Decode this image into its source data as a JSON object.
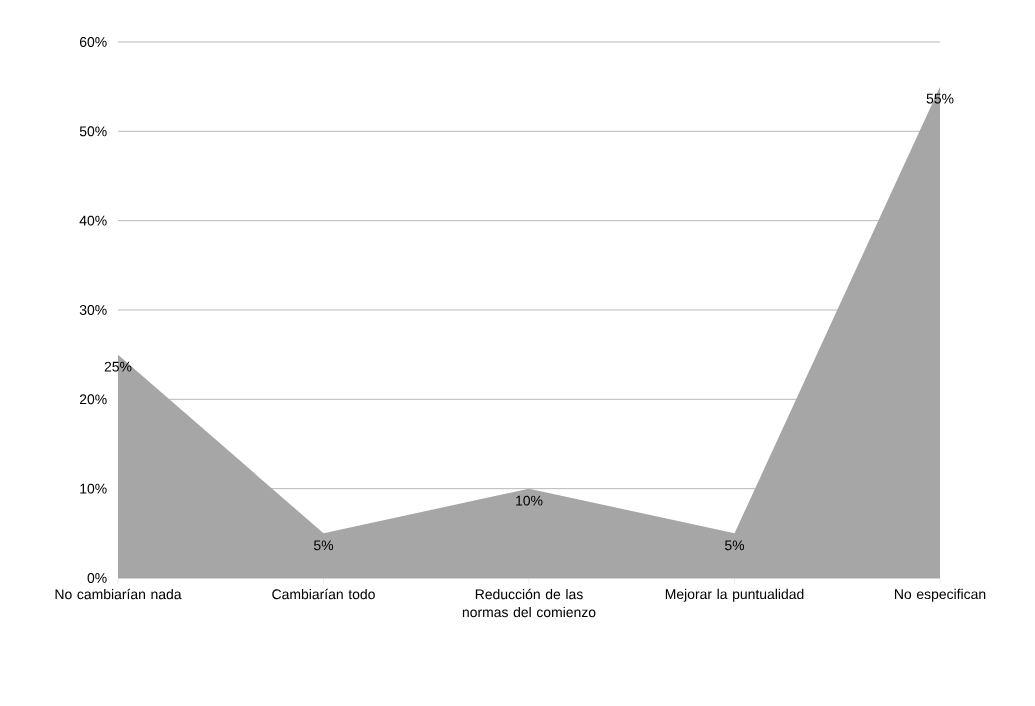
{
  "chart_data": {
    "type": "area",
    "categories": [
      "No cambiarían nada",
      "Cambiarían todo",
      "Reducción de las normas del comienzo",
      "Mejorar la puntualidad",
      "No especifican"
    ],
    "values": [
      25,
      5,
      10,
      5,
      55
    ],
    "value_labels": [
      "25%",
      "5%",
      "10%",
      "5%",
      "55%"
    ],
    "color": "#a6a6a6",
    "ylim": [
      0,
      60
    ],
    "yticks": [
      {
        "value": 0,
        "label": "0%"
      },
      {
        "value": 10,
        "label": "10%"
      },
      {
        "value": 20,
        "label": "20%"
      },
      {
        "value": 30,
        "label": "30%"
      },
      {
        "value": 40,
        "label": "40%"
      },
      {
        "value": 50,
        "label": "50%"
      },
      {
        "value": 60,
        "label": "60%"
      }
    ],
    "grid": "y"
  }
}
